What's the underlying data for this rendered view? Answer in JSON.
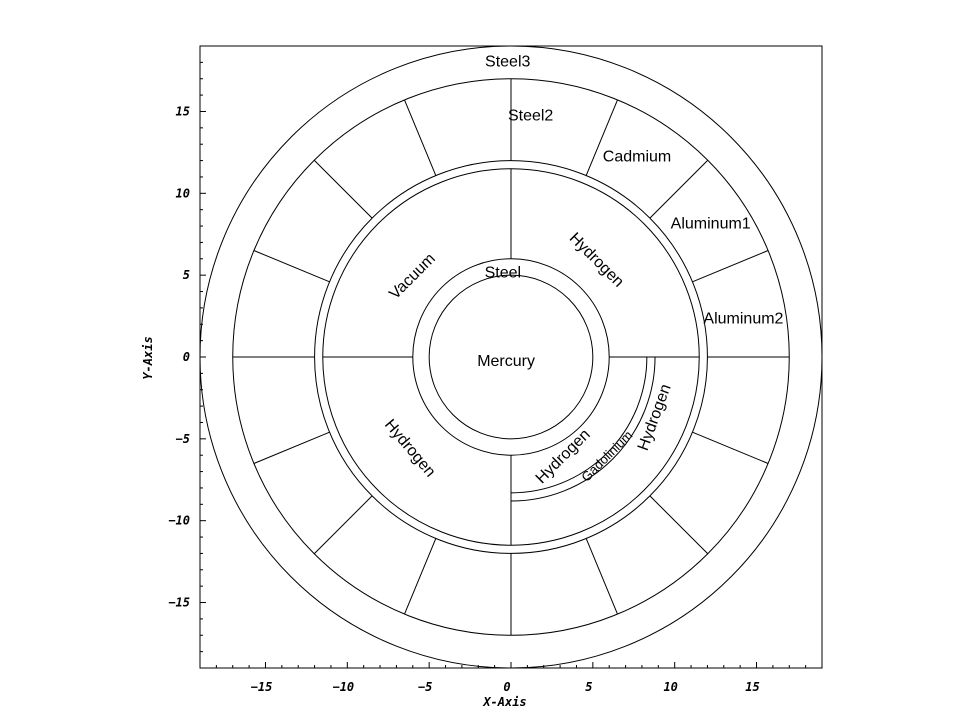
{
  "chart_data": {
    "type": "diagram",
    "xlabel": "X-Axis",
    "ylabel": "Y-Axis",
    "xlim": [
      -19,
      19
    ],
    "ylim": [
      -19,
      19
    ],
    "ticks": [
      -15,
      -10,
      -5,
      0,
      5,
      10,
      15
    ],
    "tick_labels": [
      "−15",
      "−10",
      "−5",
      "0",
      "5",
      "10",
      "15"
    ],
    "circles": [
      {
        "r": 5
      },
      {
        "r": 6
      },
      {
        "r": 11.5
      },
      {
        "r": 12
      },
      {
        "r": 17
      },
      {
        "r": 19
      }
    ],
    "inner_lines": [
      {
        "from": [
          0,
          6
        ],
        "to": [
          0,
          11.5
        ]
      },
      {
        "from": [
          -11.5,
          0
        ],
        "to": [
          -6,
          0
        ]
      },
      {
        "from": [
          6,
          0
        ],
        "to": [
          11.5,
          0
        ]
      },
      {
        "from": [
          0,
          -6
        ],
        "to": [
          0,
          -11.5
        ]
      }
    ],
    "outer_spokes_deg": [
      0,
      22.5,
      45,
      67.5,
      90,
      112.5,
      135,
      157.5,
      180,
      202.5,
      225,
      247.5,
      270,
      292.5,
      315,
      337.5
    ],
    "outer_spokes_r": [
      12,
      17
    ],
    "arc_layers": [
      8.3,
      8.8
    ],
    "labels": [
      {
        "text": "Steel3",
        "x": -0.2,
        "y": 18.0,
        "rot": 0
      },
      {
        "text": "Steel2",
        "x": 1.2,
        "y": 14.7,
        "rot": 0
      },
      {
        "text": "Cadmium",
        "x": 7.7,
        "y": 12.2,
        "rot": 0
      },
      {
        "text": "Aluminum1",
        "x": 12.2,
        "y": 8.1,
        "rot": 0
      },
      {
        "text": "Aluminum2",
        "x": 14.2,
        "y": 2.3,
        "rot": 0
      },
      {
        "text": "Vacuum",
        "x": -6.0,
        "y": 4.9,
        "rot": -45
      },
      {
        "text": "Hydrogen",
        "x": 5.2,
        "y": 5.9,
        "rot": 45
      },
      {
        "text": "Steel",
        "x": -0.5,
        "y": 5.1,
        "rot": 0
      },
      {
        "text": "Mercury",
        "x": -0.3,
        "y": -0.3,
        "rot": 0
      },
      {
        "text": "Hydrogen",
        "x": -6.2,
        "y": -5.6,
        "rot": 50
      },
      {
        "text": "Hydrogen",
        "x": 3.2,
        "y": -6.1,
        "rot": -45
      },
      {
        "text": "Gadolinium",
        "x": 5.9,
        "y": -6.1,
        "rot": -45,
        "small": true
      },
      {
        "text": "Hydrogen",
        "x": 8.8,
        "y": -3.7,
        "rot": -70
      }
    ]
  }
}
